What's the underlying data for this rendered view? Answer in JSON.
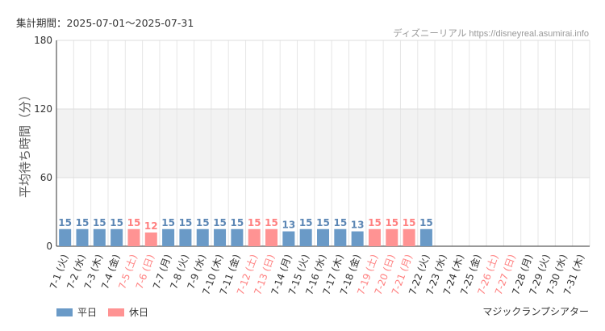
{
  "header": {
    "period": "集計期間：2025-07-01～2025-07-31",
    "source_site": "ディズニーリアル",
    "source_url": "https://disneyreal.asumirai.info"
  },
  "footer": {
    "attraction": "マジックランプシアター"
  },
  "colors": {
    "weekday": "#6a9ac7",
    "holiday": "#ff9393",
    "weekday_label": "#5b86b4",
    "holiday_label": "#ff8080",
    "band": "#f2f2f2"
  },
  "chart_data": {
    "type": "bar",
    "ylabel": "平均待ち時間（分）",
    "xlabel": "",
    "ylim": [
      0,
      180
    ],
    "yticks": [
      0,
      60,
      120,
      180
    ],
    "shaded_band": [
      60,
      120
    ],
    "grid": true,
    "legend_position": "bottom-left",
    "series": [
      {
        "name": "平日",
        "key": "weekday"
      },
      {
        "name": "休日",
        "key": "holiday"
      }
    ],
    "categories": [
      "7-1 (火)",
      "7-2 (水)",
      "7-3 (木)",
      "7-4 (金)",
      "7-5 (土)",
      "7-6 (日)",
      "7-7 (月)",
      "7-8 (火)",
      "7-9 (水)",
      "7-10 (木)",
      "7-11 (金)",
      "7-12 (土)",
      "7-13 (日)",
      "7-14 (月)",
      "7-15 (火)",
      "7-16 (水)",
      "7-17 (木)",
      "7-18 (金)",
      "7-19 (土)",
      "7-20 (日)",
      "7-21 (月)",
      "7-22 (火)",
      "7-23 (水)",
      "7-24 (木)",
      "7-25 (金)",
      "7-26 (土)",
      "7-27 (日)",
      "7-28 (月)",
      "7-29 (火)",
      "7-30 (水)",
      "7-31 (木)"
    ],
    "values": [
      15,
      15,
      15,
      15,
      15,
      12,
      15,
      15,
      15,
      15,
      15,
      15,
      15,
      13,
      15,
      15,
      15,
      13,
      15,
      15,
      15,
      15,
      null,
      null,
      null,
      null,
      null,
      null,
      null,
      null,
      null
    ],
    "day_type": [
      "weekday",
      "weekday",
      "weekday",
      "weekday",
      "holiday",
      "holiday",
      "weekday",
      "weekday",
      "weekday",
      "weekday",
      "weekday",
      "holiday",
      "holiday",
      "weekday",
      "weekday",
      "weekday",
      "weekday",
      "weekday",
      "holiday",
      "holiday",
      "holiday",
      "weekday",
      "weekday",
      "weekday",
      "weekday",
      "holiday",
      "holiday",
      "weekday",
      "weekday",
      "weekday",
      "weekday"
    ]
  }
}
